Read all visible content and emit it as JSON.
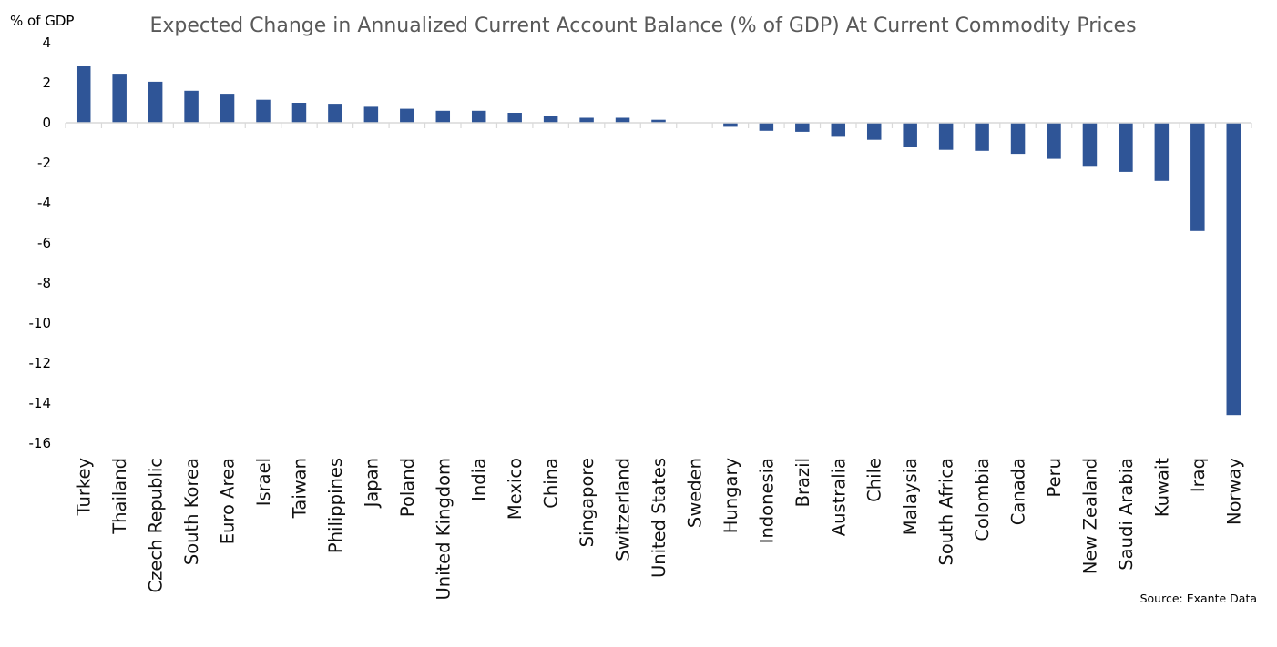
{
  "chart_data": {
    "type": "bar",
    "title": "Expected Change in Annualized Current Account Balance (% of GDP) At Current Commodity Prices",
    "ylabel": "% of GDP",
    "xlabel": "",
    "ylim": [
      -16,
      4
    ],
    "yticks": [
      4,
      2,
      0,
      -2,
      -4,
      -6,
      -8,
      -10,
      -12,
      -14,
      -16
    ],
    "grid": false,
    "legend": "none",
    "bar_color": "#2F5597",
    "axis_color": "#D9D9D9",
    "categories": [
      "Turkey",
      "Thailand",
      "Czech Republic",
      "South Korea",
      "Euro Area",
      "Israel",
      "Taiwan",
      "Philippines",
      "Japan",
      "Poland",
      "United Kingdom",
      "India",
      "Mexico",
      "China",
      "Singapore",
      "Switzerland",
      "United States",
      "Sweden",
      "Hungary",
      "Indonesia",
      "Brazil",
      "Australia",
      "Chile",
      "Malaysia",
      "South Africa",
      "Colombia",
      "Canada",
      "Peru",
      "New Zealand",
      "Saudi Arabia",
      "Kuwait",
      "Iraq",
      "Norway"
    ],
    "values": [
      2.85,
      2.45,
      2.05,
      1.6,
      1.45,
      1.15,
      1.0,
      0.95,
      0.8,
      0.7,
      0.6,
      0.6,
      0.5,
      0.35,
      0.25,
      0.25,
      0.15,
      0.0,
      -0.2,
      -0.4,
      -0.45,
      -0.7,
      -0.85,
      -1.2,
      -1.35,
      -1.4,
      -1.55,
      -1.8,
      -2.15,
      -2.45,
      -2.9,
      -5.4,
      -14.6
    ]
  },
  "source": "Source: Exante Data"
}
